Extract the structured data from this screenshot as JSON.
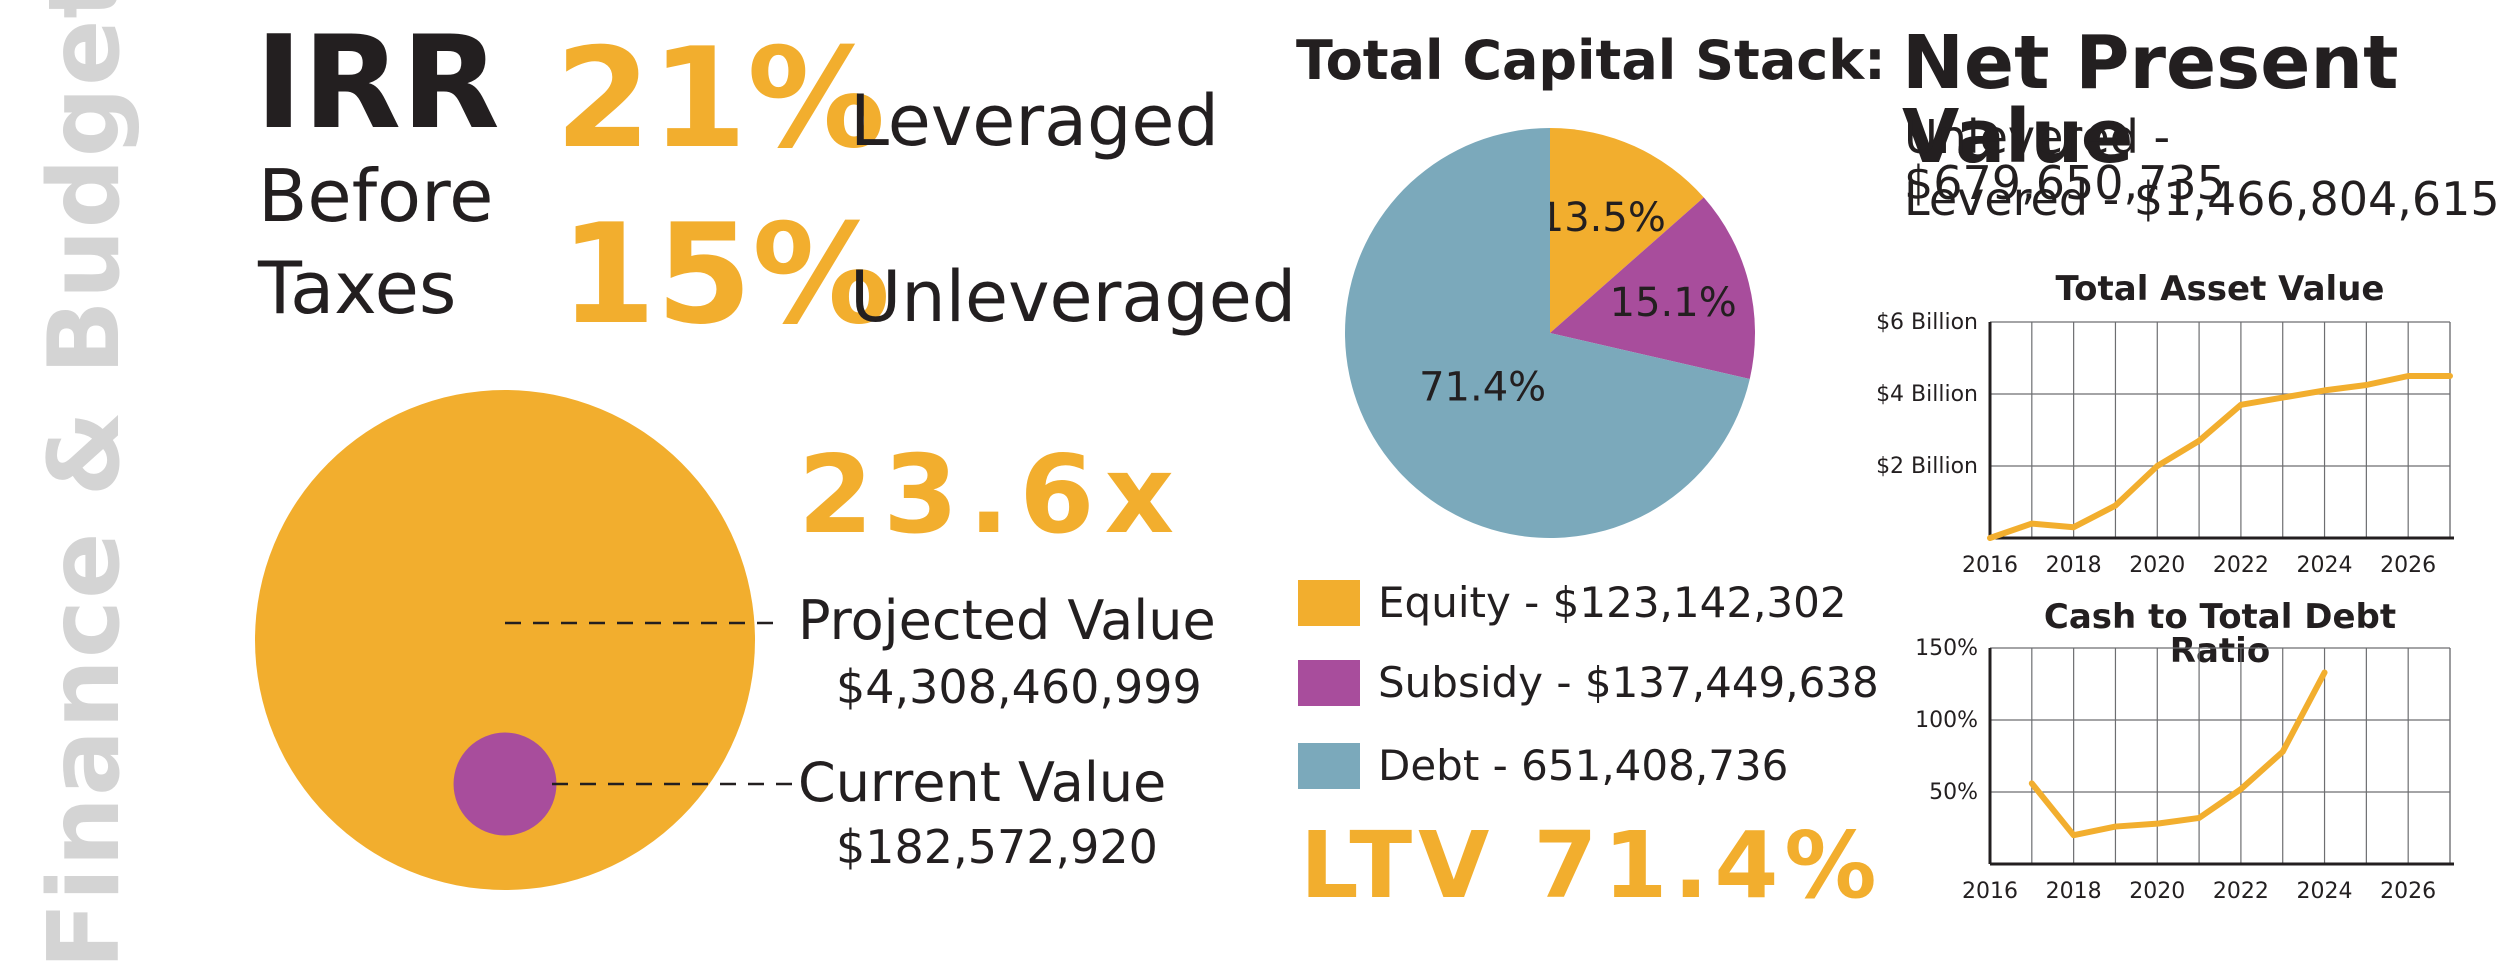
{
  "side_title": "Finance & Budget",
  "irr": {
    "title": "IRR",
    "subtitle_line1": "Before",
    "subtitle_line2": "Taxes",
    "leveraged_pct": "21%",
    "leveraged_label": "Leveraged",
    "unleveraged_pct": "15%",
    "unleveraged_label": "Unleveraged"
  },
  "value_comparison": {
    "multiple": "23.6x",
    "projected_label": "Projected Value",
    "projected_value": "$4,308,460,999",
    "current_label": "Current Value",
    "current_value": "$182,572,920",
    "projected_amount": 4308460999,
    "current_amount": 182572920,
    "colors": {
      "projected": "#f2ae2e",
      "current": "#a84d9c"
    }
  },
  "capital_stack": {
    "title": "Total Capital Stack:",
    "legend": [
      {
        "label": "Equity - $123,142,302",
        "color": "#f2ae2e"
      },
      {
        "label": "Subsidy - $137,449,638",
        "color": "#a84d9c"
      },
      {
        "label": "Debt - 651,408,736",
        "color": "#7ba9bb"
      }
    ],
    "ltv": "LTV 71.4%"
  },
  "npv": {
    "title": "Net Present Value",
    "unlevered": "Unlevered - $679,650,735",
    "levered": "Levered - $1,466,804,615"
  },
  "chart_data": [
    {
      "type": "pie",
      "title": "",
      "categories": [
        "Equity",
        "Subsidy",
        "Debt"
      ],
      "values": [
        13.5,
        15.1,
        71.4
      ],
      "labels": [
        "13.5%",
        "15.1%",
        "71.4%"
      ],
      "colors": [
        "#f2ae2e",
        "#a84d9c",
        "#7ba9bb"
      ]
    },
    {
      "type": "line",
      "title": "Total Asset Value",
      "x": [
        2016,
        2017,
        2018,
        2019,
        2020,
        2021,
        2022,
        2023,
        2024,
        2025,
        2026,
        2027
      ],
      "values": [
        0,
        0.4,
        0.3,
        0.9,
        2.0,
        2.7,
        3.7,
        3.9,
        4.1,
        4.25,
        4.5,
        4.5
      ],
      "xlim": [
        2016,
        2027
      ],
      "ylim": [
        0,
        6
      ],
      "yticks": [
        2,
        4,
        6
      ],
      "ytick_labels": [
        "$2 Billion",
        "$4 Billion",
        "$6 Billion"
      ],
      "xticks": [
        2016,
        2018,
        2020,
        2022,
        2024,
        2026
      ],
      "xtick_labels": [
        "2016",
        "2018",
        "2020",
        "2022",
        "2024",
        "2026"
      ],
      "grid": true,
      "color": "#f2ae2e"
    },
    {
      "type": "line",
      "title": "Cash to Total Debt Ratio",
      "x": [
        2017,
        2018,
        2019,
        2020,
        2021,
        2022,
        2023,
        2024
      ],
      "values": [
        56,
        20,
        26,
        28,
        32,
        52,
        78,
        133
      ],
      "xlim": [
        2016,
        2027
      ],
      "ylim": [
        0,
        150
      ],
      "yticks": [
        50,
        100,
        150
      ],
      "ytick_labels": [
        "50%",
        "100%",
        "150%"
      ],
      "xticks": [
        2016,
        2018,
        2020,
        2022,
        2024,
        2026
      ],
      "xtick_labels": [
        "2016",
        "2018",
        "2020",
        "2022",
        "2024",
        "2026"
      ],
      "grid": true,
      "color": "#f2ae2e"
    }
  ]
}
